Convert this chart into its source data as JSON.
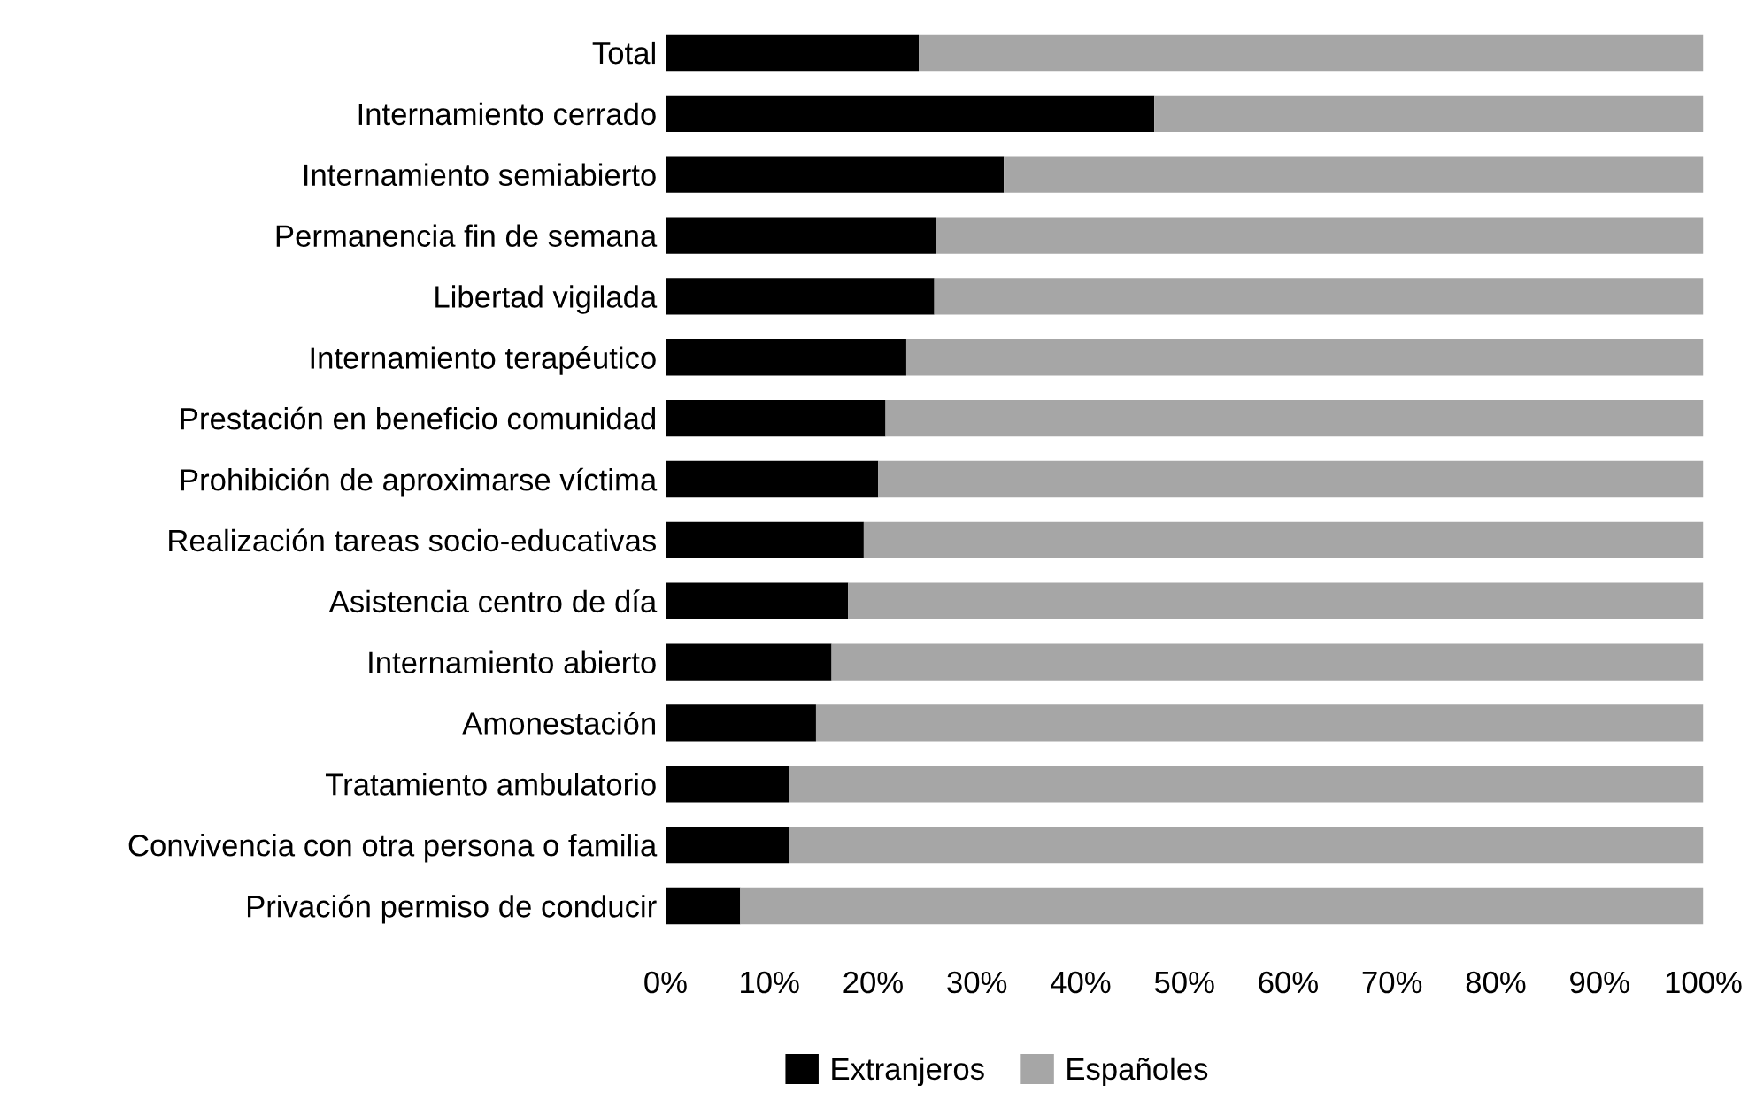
{
  "chart_data": {
    "type": "bar",
    "orientation": "horizontal",
    "stacked": true,
    "categories": [
      "Total",
      "Internamiento cerrado",
      "Internamiento semiabierto",
      "Permanencia fin de semana",
      "Libertad vigilada",
      "Internamiento terapéutico",
      "Prestación en beneficio comunidad",
      "Prohibición de aproximarse víctima",
      "Realización tareas socio-educativas",
      "Asistencia centro de día",
      "Internamiento abierto",
      "Amonestación",
      "Tratamiento ambulatorio",
      "Convivencia con otra persona o familia",
      "Privación permiso de conducir"
    ],
    "series": [
      {
        "name": "Extranjeros",
        "color": "#000000",
        "values": [
          24.4,
          47.1,
          32.6,
          26.1,
          25.9,
          23.2,
          21.2,
          20.5,
          19.1,
          17.6,
          16.0,
          14.5,
          11.9,
          11.9,
          7.2
        ]
      },
      {
        "name": "Españoles",
        "color": "#a6a6a6",
        "values": [
          75.6,
          52.9,
          67.4,
          73.9,
          74.1,
          76.8,
          78.8,
          79.5,
          80.9,
          82.4,
          84.0,
          85.5,
          88.1,
          88.1,
          92.8
        ]
      }
    ],
    "xlim": [
      0,
      100
    ],
    "xticks": [
      {
        "value": 0,
        "label": "0%"
      },
      {
        "value": 10,
        "label": "10%"
      },
      {
        "value": 20,
        "label": "20%"
      },
      {
        "value": 30,
        "label": "30%"
      },
      {
        "value": 40,
        "label": "40%"
      },
      {
        "value": 50,
        "label": "50%"
      },
      {
        "value": 60,
        "label": "60%"
      },
      {
        "value": 70,
        "label": "70%"
      },
      {
        "value": 80,
        "label": "80%"
      },
      {
        "value": 90,
        "label": "90%"
      },
      {
        "value": 100,
        "label": "100%"
      }
    ],
    "legend": "bottom",
    "grid": false
  }
}
